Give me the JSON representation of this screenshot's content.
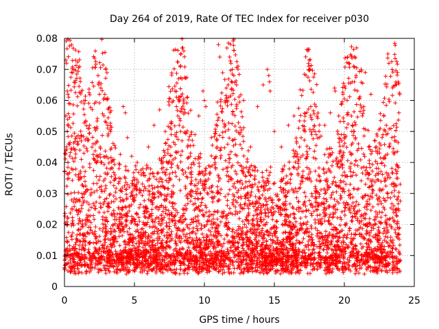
{
  "chart_data": {
    "type": "scatter",
    "title": "Day 264 of 2019, Rate Of TEC Index for receiver p030",
    "xlabel": "GPS time / hours",
    "ylabel": "ROTI / TECUs",
    "xlim": [
      0,
      25
    ],
    "ylim": [
      0,
      0.08
    ],
    "xticks": [
      0,
      5,
      10,
      15,
      20,
      25
    ],
    "xtick_labels": [
      "0",
      "5",
      "10",
      "15",
      "20",
      "25"
    ],
    "yticks": [
      0,
      0.01,
      0.02,
      0.03,
      0.04,
      0.05,
      0.06,
      0.07,
      0.08
    ],
    "ytick_labels": [
      "0",
      "0.01",
      "0.02",
      "0.03",
      "0.04",
      "0.05",
      "0.06",
      "0.07",
      "0.08"
    ],
    "grid": true,
    "marker": "+",
    "color": "#ff0000",
    "series": [
      {
        "name": "ROTI",
        "description_of_distribution": "dense band 0.002-0.035 across 0-24 h",
        "x": [
          0.1,
          0.15,
          0.2,
          0.25,
          0.3,
          0.1,
          0.2,
          0.3,
          0.15,
          0.25,
          0.5,
          0.8,
          1.2,
          1.5,
          1.8,
          2.4,
          2.45,
          2.5,
          2.55,
          2.6,
          3.0,
          3.3,
          3.6,
          3.9,
          4.2,
          4.35,
          4.5,
          4.8,
          5.2,
          5.6,
          6.0,
          6.4,
          6.8,
          7.2,
          7.6,
          7.9,
          8.0,
          8.1,
          8.2,
          8.3,
          8.4,
          8.8,
          9.2,
          9.6,
          9.9,
          10.0,
          10.1,
          10.5,
          10.8,
          10.9,
          11.0,
          11.1,
          11.5,
          11.7,
          11.8,
          11.9,
          12.0,
          12.1,
          12.3,
          12.8,
          13.3,
          13.8,
          14.2,
          14.5,
          14.6,
          14.65,
          14.7,
          15.0,
          15.5,
          16.0,
          16.4,
          16.8,
          17.2,
          17.6,
          17.9,
          18.2,
          18.6,
          19.0,
          19.3,
          19.35,
          19.6,
          19.9,
          20.2,
          20.5,
          20.6,
          20.7,
          20.8,
          21.0,
          21.2,
          21.5,
          21.9,
          22.3,
          22.7,
          23.0,
          23.2,
          23.4,
          23.6,
          23.8,
          23.85,
          23.9
        ],
        "y": [
          0.073,
          0.072,
          0.063,
          0.062,
          0.061,
          0.055,
          0.05,
          0.046,
          0.045,
          0.04,
          0.038,
          0.036,
          0.041,
          0.06,
          0.052,
          0.068,
          0.065,
          0.062,
          0.045,
          0.04,
          0.042,
          0.05,
          0.036,
          0.038,
          0.058,
          0.056,
          0.048,
          0.042,
          0.04,
          0.038,
          0.045,
          0.052,
          0.057,
          0.05,
          0.045,
          0.063,
          0.058,
          0.055,
          0.052,
          0.05,
          0.047,
          0.045,
          0.04,
          0.055,
          0.063,
          0.06,
          0.058,
          0.048,
          0.05,
          0.045,
          0.078,
          0.074,
          0.05,
          0.065,
          0.074,
          0.072,
          0.07,
          0.068,
          0.065,
          0.06,
          0.045,
          0.058,
          0.065,
          0.07,
          0.068,
          0.066,
          0.063,
          0.05,
          0.045,
          0.052,
          0.055,
          0.045,
          0.05,
          0.058,
          0.05,
          0.048,
          0.052,
          0.056,
          0.064,
          0.063,
          0.055,
          0.062,
          0.06,
          0.055,
          0.052,
          0.05,
          0.048,
          0.046,
          0.07,
          0.069,
          0.062,
          0.045,
          0.048,
          0.052,
          0.045,
          0.048,
          0.047,
          0.069,
          0.066,
          0.056
        ]
      }
    ]
  }
}
